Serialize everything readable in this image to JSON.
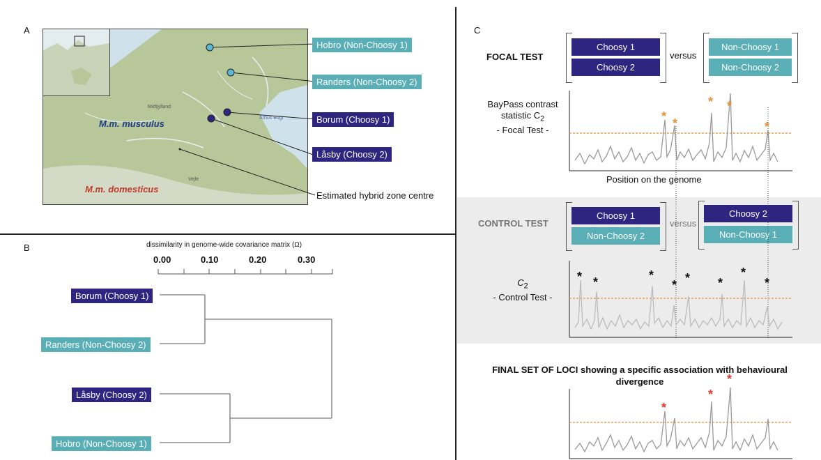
{
  "panels": {
    "a": "A",
    "b": "B",
    "c": "C"
  },
  "map": {
    "labels": [
      {
        "text": "Hobro (Non-Choosy 1)",
        "kind": "nonchoosy"
      },
      {
        "text": "Randers (Non-Choosy 2)",
        "kind": "nonchoosy"
      },
      {
        "text": "Borum (Choosy 1)",
        "kind": "choosy"
      },
      {
        "text": "Låsby (Choosy 2)",
        "kind": "choosy"
      }
    ],
    "musculus": "M.m. musculus",
    "domesticus": "M.m. domesticus",
    "hybrid": "Estimated hybrid zone centre",
    "place_labels": [
      "Midtjylland",
      "Århus Bugt",
      "Vejle"
    ],
    "colors": {
      "land": "#b7c79a",
      "sea": "#cfe2ec",
      "choosy": "#2e2580",
      "nonchoosy": "#5aaeb6"
    }
  },
  "dendrogram": {
    "title": "dissimilarity in genome-wide covariance matrix (Ω)",
    "ticks": [
      "0.00",
      "0.10",
      "0.20",
      "0.30"
    ],
    "leaves": [
      {
        "text": "Borum (Choosy 1)",
        "kind": "choosy"
      },
      {
        "text": "Randers (Non-Choosy 2)",
        "kind": "nonchoosy"
      },
      {
        "text": "Låsby (Choosy 2)",
        "kind": "choosy"
      },
      {
        "text": "Hobro (Non-Choosy 1)",
        "kind": "nonchoosy"
      }
    ]
  },
  "focal": {
    "title": "FOCAL TEST",
    "left": [
      "Choosy 1",
      "Choosy 2"
    ],
    "versus": "versus",
    "right": [
      "Non-Choosy 1",
      "Non-Choosy 2"
    ],
    "ylabel_line1": "BayPass contrast",
    "ylabel_line2": "statistic C",
    "ylabel_sub": "2",
    "ylabel_line3": "- Focal Test -",
    "xlabel": "Position on the genome"
  },
  "control": {
    "title": "CONTROL TEST",
    "left": [
      "Choosy 1",
      "Non-Choosy 2"
    ],
    "versus": "versus",
    "right": [
      "Choosy 2",
      "Non-Choosy 1"
    ],
    "ylabel_c": "C",
    "ylabel_sub": "2",
    "ylabel_line2": "- Control Test -"
  },
  "final": {
    "title_line1": "FINAL SET OF LOCI showing a specific association with behavioural",
    "title_line2": "divergence"
  },
  "star_symbol": "*"
}
